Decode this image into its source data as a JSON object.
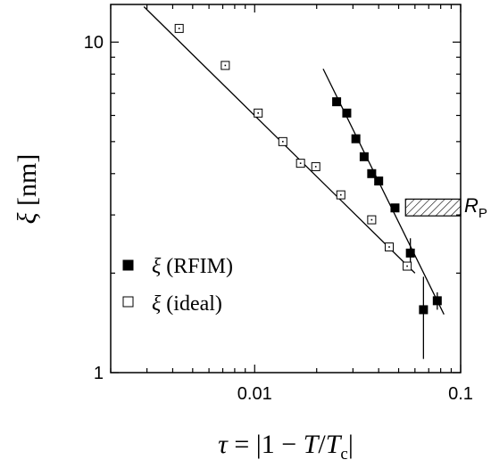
{
  "chart_data": {
    "type": "scatter",
    "xscale": "log",
    "yscale": "log",
    "xlim": [
      0.002,
      0.1
    ],
    "ylim": [
      1,
      13
    ],
    "x_ticks": [
      {
        "value": 0.01,
        "label": "0.01"
      },
      {
        "value": 0.1,
        "label": "0.1"
      }
    ],
    "y_ticks": [
      {
        "value": 1,
        "label": "1"
      },
      {
        "value": 10,
        "label": "10"
      }
    ],
    "xlabel": {
      "tau": "τ",
      "eq": " = |1 − ",
      "T": "T",
      "slash": "/",
      "Tc": "T",
      "c": "c",
      "close": "|"
    },
    "ylabel": {
      "xi": "ξ",
      "unit": " [nm]"
    },
    "series": [
      {
        "name": "ξ (RFIM)",
        "legend_symbol": "ξ",
        "legend_text": " (RFIM)",
        "marker": "filled-square",
        "points": [
          {
            "x": 0.025,
            "y": 6.6
          },
          {
            "x": 0.028,
            "y": 6.1
          },
          {
            "x": 0.031,
            "y": 5.1
          },
          {
            "x": 0.034,
            "y": 4.5
          },
          {
            "x": 0.037,
            "y": 4.0
          },
          {
            "x": 0.04,
            "y": 3.8
          },
          {
            "x": 0.048,
            "y": 3.15
          },
          {
            "x": 0.057,
            "y": 2.3,
            "yerr": [
              2.1,
              2.55
            ]
          },
          {
            "x": 0.066,
            "y": 1.55,
            "yerr": [
              1.1,
              1.95
            ]
          },
          {
            "x": 0.077,
            "y": 1.65,
            "yerr": [
              1.55,
              1.75
            ]
          }
        ],
        "fit": {
          "x1": 0.0215,
          "y1": 8.3,
          "x2": 0.083,
          "y2": 1.5
        }
      },
      {
        "name": "ξ (ideal)",
        "legend_symbol": "ξ",
        "legend_text": " (ideal)",
        "marker": "open-square",
        "points": [
          {
            "x": 0.0043,
            "y": 11.0
          },
          {
            "x": 0.0072,
            "y": 8.5
          },
          {
            "x": 0.0104,
            "y": 6.1
          },
          {
            "x": 0.0137,
            "y": 5.0
          },
          {
            "x": 0.0167,
            "y": 4.3
          },
          {
            "x": 0.0198,
            "y": 4.2
          },
          {
            "x": 0.0262,
            "y": 3.45
          },
          {
            "x": 0.037,
            "y": 2.9
          },
          {
            "x": 0.045,
            "y": 2.4
          },
          {
            "x": 0.055,
            "y": 2.1
          }
        ],
        "fit": {
          "x1": 0.0029,
          "y1": 12.8,
          "x2": 0.06,
          "y2": 2.0
        }
      }
    ],
    "band": {
      "label": "R",
      "sub": "P",
      "x_from": 0.054,
      "x_to": 0.1,
      "y_from": 2.98,
      "y_to": 3.35,
      "fill": "hatched"
    },
    "legend_placement": "lower-left",
    "grid": false
  }
}
